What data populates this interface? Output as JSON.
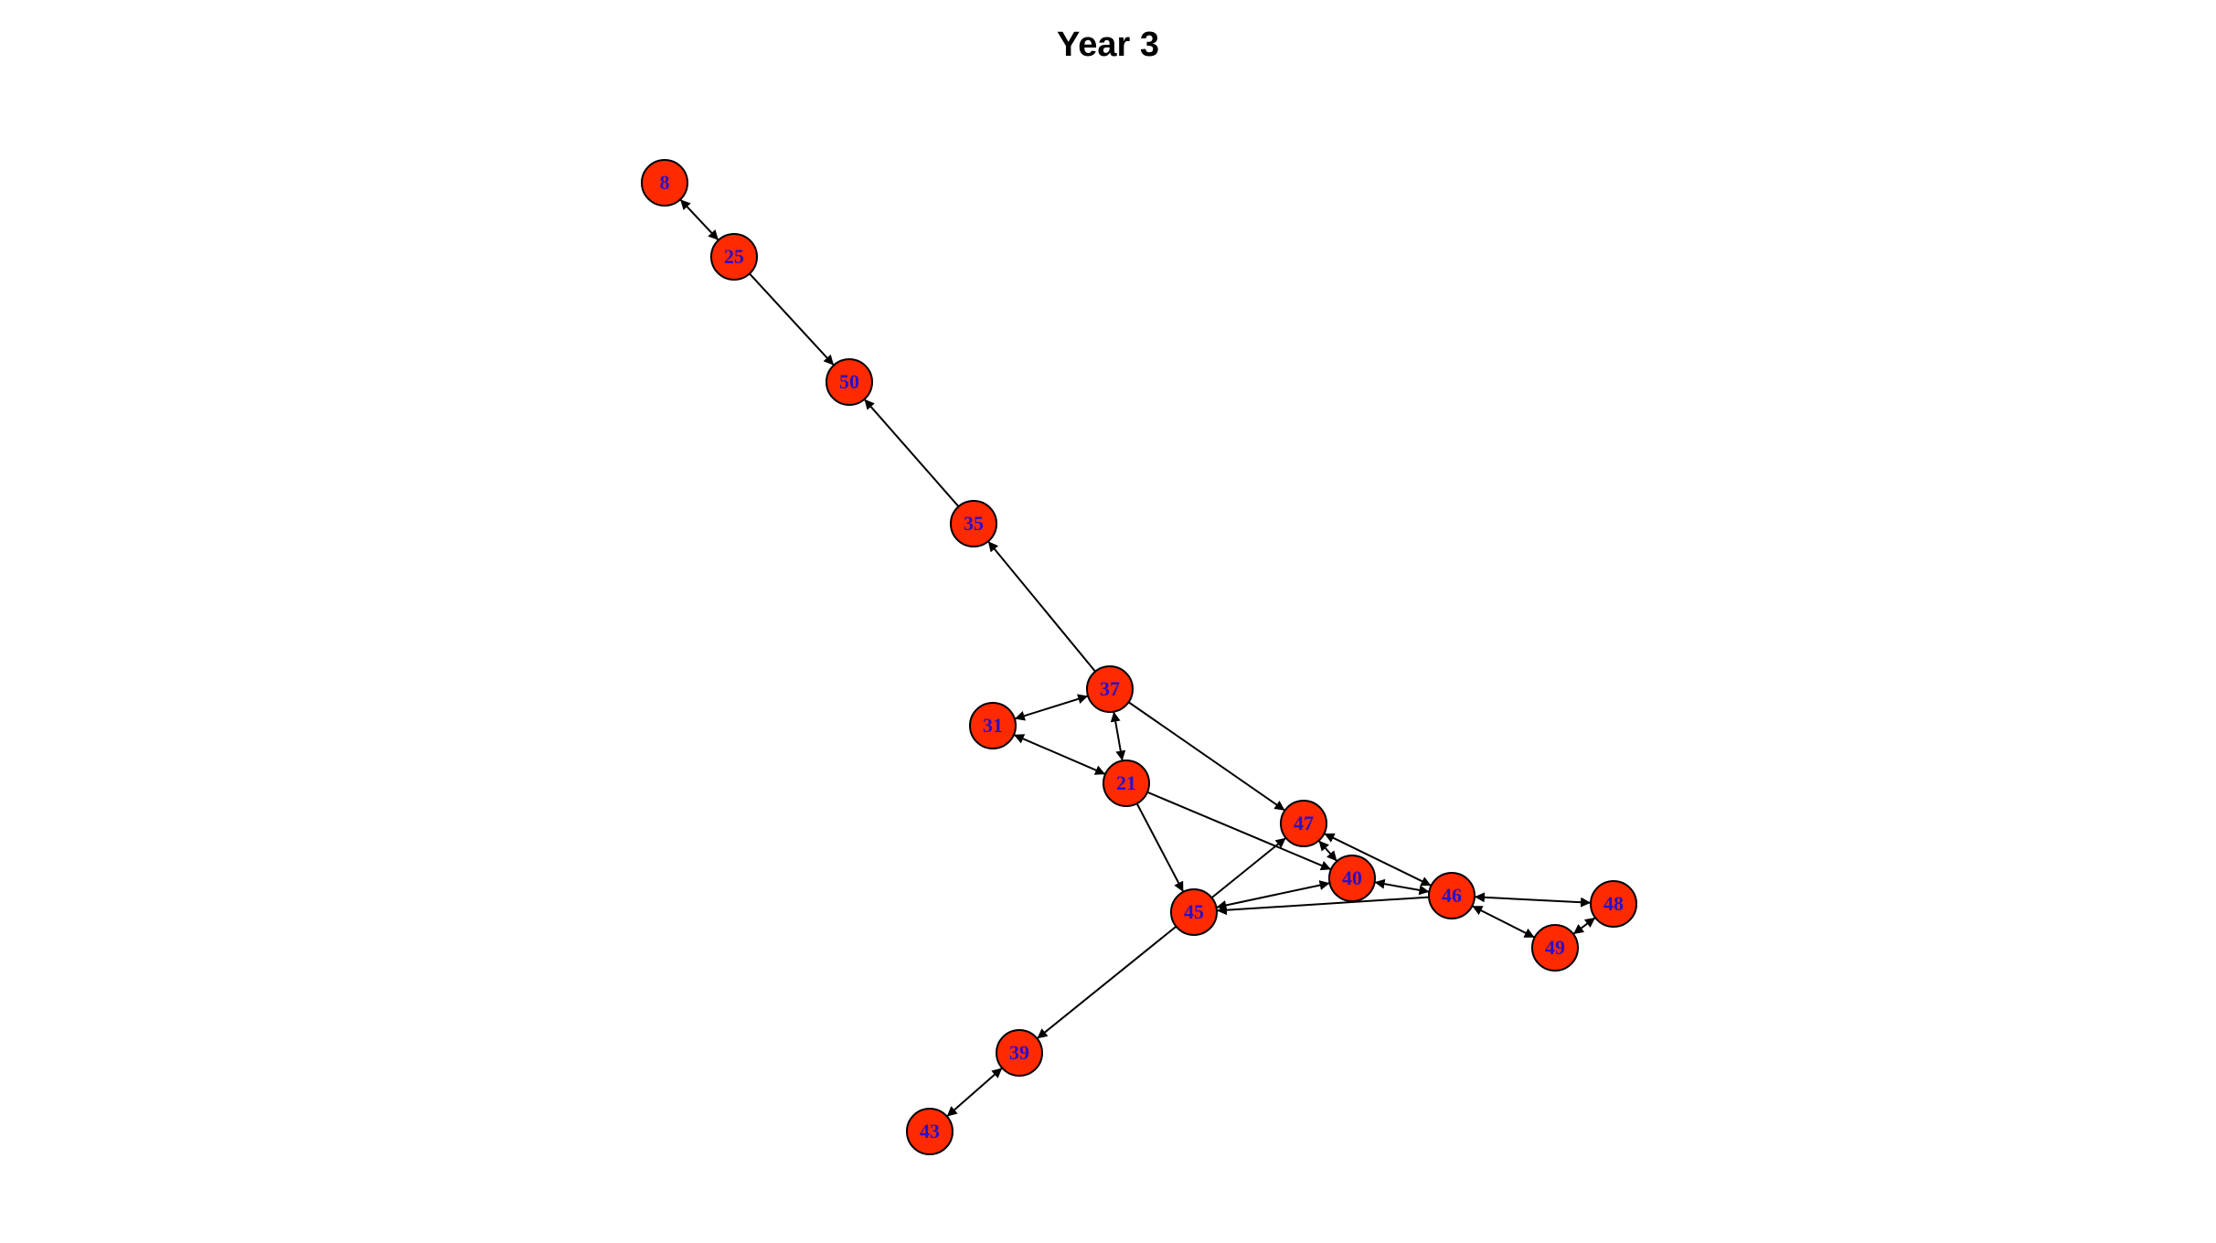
{
  "title": "Year 3",
  "colors": {
    "node_fill": "#ff2a00",
    "node_stroke": "#000000",
    "label": "#2a10c8",
    "edge": "#000000"
  },
  "graph": {
    "nodes": [
      {
        "id": "8"
      },
      {
        "id": "25"
      },
      {
        "id": "50"
      },
      {
        "id": "35"
      },
      {
        "id": "37"
      },
      {
        "id": "31"
      },
      {
        "id": "21"
      },
      {
        "id": "47"
      },
      {
        "id": "40"
      },
      {
        "id": "45"
      },
      {
        "id": "46"
      },
      {
        "id": "48"
      },
      {
        "id": "49"
      },
      {
        "id": "39"
      },
      {
        "id": "43"
      }
    ],
    "edges": [
      {
        "from": "8",
        "to": "25",
        "bidirectional": true
      },
      {
        "from": "25",
        "to": "50"
      },
      {
        "from": "35",
        "to": "50"
      },
      {
        "from": "37",
        "to": "35"
      },
      {
        "from": "37",
        "to": "31",
        "bidirectional": true
      },
      {
        "from": "37",
        "to": "21",
        "bidirectional": true
      },
      {
        "from": "21",
        "to": "31",
        "bidirectional": true
      },
      {
        "from": "37",
        "to": "47"
      },
      {
        "from": "21",
        "to": "45"
      },
      {
        "from": "21",
        "to": "40"
      },
      {
        "from": "45",
        "to": "47"
      },
      {
        "from": "45",
        "to": "40",
        "bidirectional": true
      },
      {
        "from": "46",
        "to": "45"
      },
      {
        "from": "47",
        "to": "40",
        "bidirectional": true
      },
      {
        "from": "47",
        "to": "46",
        "bidirectional": true
      },
      {
        "from": "46",
        "to": "40",
        "bidirectional": true
      },
      {
        "from": "46",
        "to": "48",
        "bidirectional": true
      },
      {
        "from": "49",
        "to": "46",
        "bidirectional": true
      },
      {
        "from": "49",
        "to": "48",
        "bidirectional": true
      },
      {
        "from": "45",
        "to": "39"
      },
      {
        "from": "43",
        "to": "39",
        "bidirectional": true
      }
    ]
  }
}
